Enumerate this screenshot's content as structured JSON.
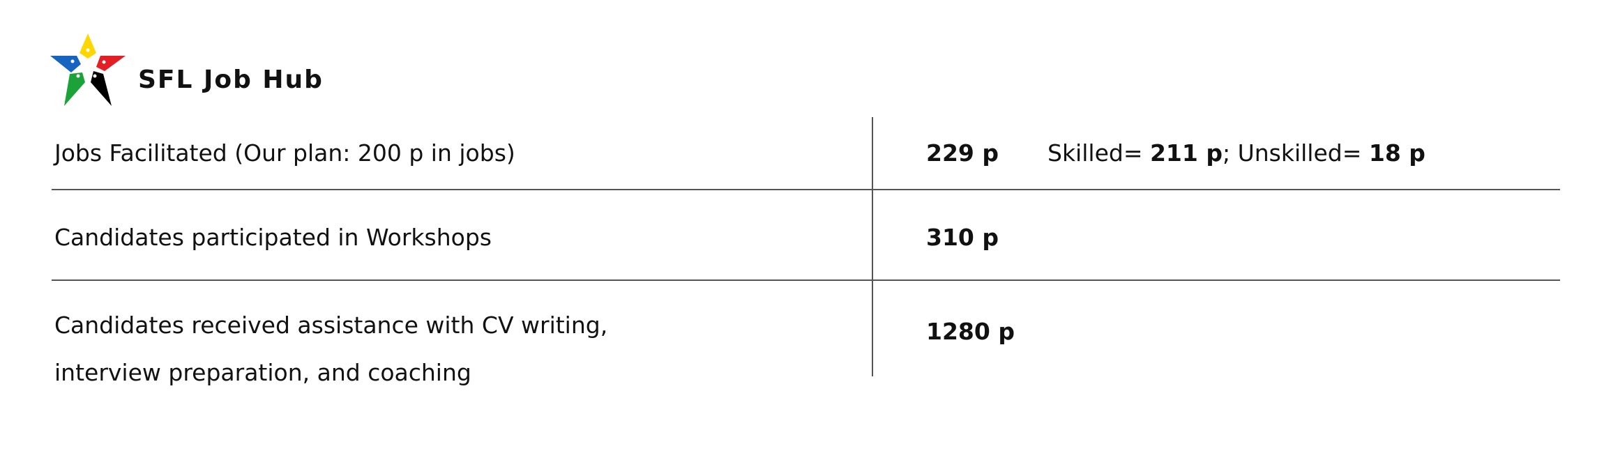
{
  "header": {
    "brand": "SFL Job Hub",
    "logo_colors": [
      "#FFD600",
      "#E31E24",
      "#000000",
      "#1BA33A",
      "#1565C0"
    ]
  },
  "rows": [
    {
      "label_lines": [
        "Jobs Facilitated (Our plan: 200 p in jobs)"
      ],
      "value": "229 p",
      "detail": {
        "skilled_label": "Skilled=",
        "skilled_value": "211 p",
        "separator": ";",
        "unskilled_label": "Unskilled=",
        "unskilled_value": "18 p"
      }
    },
    {
      "label_lines": [
        "Candidates participated in Workshops"
      ],
      "value": "310 p"
    },
    {
      "label_lines": [
        "Candidates received assistance with CV writing,",
        "interview preparation, and coaching"
      ],
      "value": "1280 p"
    }
  ]
}
